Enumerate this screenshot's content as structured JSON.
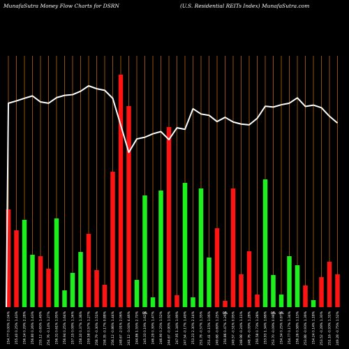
{
  "header": {
    "left": "MunafaSutra  Money Flow  Charts for DSRN",
    "right": "(U.S. Residential REITs Index) MunafaSutra.com"
  },
  "colors": {
    "background": "#000000",
    "gridline": "#b8690a",
    "up_bar": "#1ef01e",
    "down_bar": "#ff1414",
    "price_line": "#ffffff",
    "label": "#ffffff"
  },
  "chart_data": {
    "type": "bar",
    "title": "",
    "xlabel": "",
    "ylabel": "",
    "grid": true,
    "categories": [
      "254.77 0.00% 2.04%",
      "255.40 0.25% 1.43%",
      "256.14 0.29% 2.28%",
      "256.80 0.26% 1.43%",
      "255.12 -0.65% 1.49%",
      "254.76 -0.14% 1.27%",
      "256.31 0.61% 1.95%",
      "256.94 0.25% 1.64%",
      "257.15 0.08% 1.34%",
      "258.10 0.37% 1.36%",
      "259.58 0.57% 1.27%",
      "258.79 -0.30% 1.51%",
      "258.35 -0.17% 0.88%",
      "256.12 -0.86% 1.44%",
      "248.67 -2.91% 2.06%",
      "241.12 -3.04% 4.46%",
      "244.86 1.55% 2.70%",
      "245.33 0.19% 1.62%",
      "246.29 0.39% 1.47%",
      "246.90 0.25% 1.52%",
      "244.67 -0.90% 1.92%",
      "247.95 1.34% 1.99%",
      "247.54 -0.17% 1.49%",
      "253.23 2.30% 2.14%",
      "251.78 -0.57% 1.35%",
      "251.41 -0.15% 1.06%",
      "249.68 -0.69% 1.25%",
      "250.86 0.47% 1.26%",
      "249.57 -0.51% 0.95%",
      "248.98 -0.24% 1.11%",
      "248.76 -0.09% 1.28%",
      "250.58 0.73% 1.28%",
      "253.93 1.34% 1.66%",
      "253.70 -0.09% 0.98%",
      "254.34 0.25% 0.87%",
      "254.77 0.17% 1.34%",
      "256.26 0.58% 1.13%",
      "253.88 -0.93% 1.39%",
      "254.24 0.14% 1.18%",
      "253.52 -0.28% 1.30%",
      "251.16 -0.93% 1.31%",
      "249.28 -0.75% 1.52%"
    ],
    "flow_direction": [
      "down",
      "down",
      "up",
      "up",
      "down",
      "down",
      "up",
      "up",
      "up",
      "up",
      "down",
      "down",
      "down",
      "down",
      "down",
      "down",
      "up",
      "up",
      "up",
      "up",
      "down",
      "down",
      "up",
      "up",
      "up",
      "up",
      "down",
      "down",
      "down",
      "down",
      "down",
      "down",
      "up",
      "up",
      "up",
      "up",
      "up",
      "down",
      "up",
      "down",
      "down",
      "down"
    ],
    "values": [
      140,
      110,
      125,
      75,
      73,
      55,
      127,
      24,
      49,
      79,
      105,
      53,
      32,
      194,
      333,
      288,
      39,
      160,
      14,
      167,
      258,
      17,
      178,
      14,
      170,
      71,
      113,
      9,
      170,
      47,
      80,
      18,
      183,
      46,
      18,
      73,
      60,
      31,
      10,
      43,
      65,
      47
    ],
    "price": [
      254.77,
      255.4,
      256.14,
      256.8,
      255.12,
      254.76,
      256.31,
      256.94,
      257.15,
      258.1,
      259.58,
      258.79,
      258.35,
      256.12,
      248.67,
      241.12,
      244.86,
      245.33,
      246.29,
      246.9,
      244.67,
      247.95,
      247.54,
      253.23,
      251.78,
      251.41,
      249.68,
      250.86,
      249.57,
      248.98,
      248.76,
      250.58,
      253.93,
      253.7,
      254.34,
      254.77,
      256.26,
      253.88,
      254.24,
      253.52,
      251.16,
      249.28
    ],
    "markers": [
      {
        "index": 17,
        "text": "0%"
      },
      {
        "index": 27,
        "text": "0%"
      },
      {
        "index": 33,
        "text": "0%"
      },
      {
        "index": 34,
        "text": "0%"
      }
    ]
  }
}
